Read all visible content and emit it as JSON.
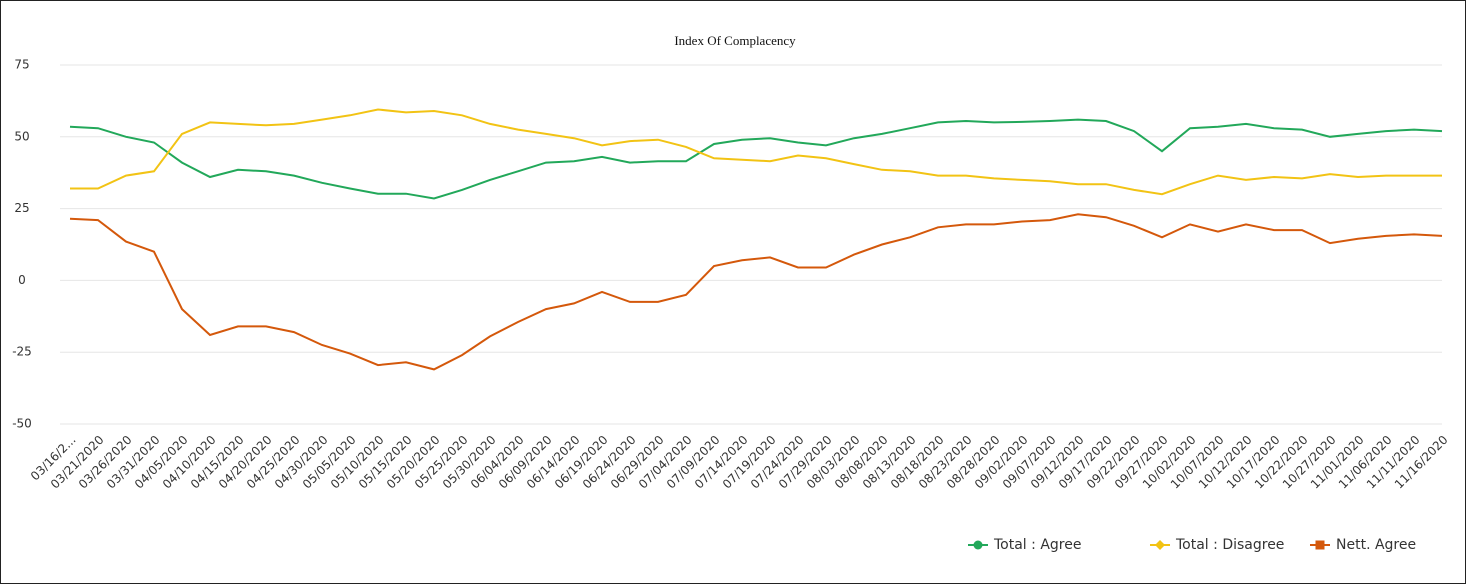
{
  "chart_data": {
    "type": "line",
    "title": "Index Of Complacency",
    "categories": [
      "03/16/2...",
      "03/21/2020",
      "03/26/2020",
      "03/31/2020",
      "04/05/2020",
      "04/10/2020",
      "04/15/2020",
      "04/20/2020",
      "04/25/2020",
      "04/30/2020",
      "05/05/2020",
      "05/10/2020",
      "05/15/2020",
      "05/20/2020",
      "05/25/2020",
      "05/30/2020",
      "06/04/2020",
      "06/09/2020",
      "06/14/2020",
      "06/19/2020",
      "06/24/2020",
      "06/29/2020",
      "07/04/2020",
      "07/09/2020",
      "07/14/2020",
      "07/19/2020",
      "07/24/2020",
      "07/29/2020",
      "08/03/2020",
      "08/08/2020",
      "08/13/2020",
      "08/18/2020",
      "08/23/2020",
      "08/28/2020",
      "09/02/2020",
      "09/07/2020",
      "09/12/2020",
      "09/17/2020",
      "09/22/2020",
      "09/27/2020",
      "10/02/2020",
      "10/07/2020",
      "10/12/2020",
      "10/17/2020",
      "10/22/2020",
      "10/27/2020",
      "11/01/2020",
      "11/06/2020",
      "11/11/2020",
      "11/16/2020"
    ],
    "series": [
      {
        "name": "Total : Agree",
        "color": "#22a85a",
        "values": [
          53.5,
          53,
          50,
          48,
          41,
          36,
          38.5,
          38,
          36.5,
          34,
          32,
          30.2,
          30.2,
          28.5,
          31.5,
          35,
          38,
          41,
          41.5,
          43,
          41,
          41.5,
          41.5,
          47.5,
          49,
          49.5,
          48,
          47,
          49.5,
          51,
          53,
          55,
          55.5,
          55,
          55.2,
          55.5,
          56,
          55.5,
          52,
          45,
          53,
          53.5,
          54.5,
          53,
          52.5,
          50,
          51,
          52,
          52.5,
          52
        ]
      },
      {
        "name": "Total : Disagree",
        "color": "#f2c314",
        "values": [
          32,
          32,
          36.5,
          38,
          51,
          55,
          54.5,
          54,
          54.5,
          56,
          57.5,
          59.5,
          58.5,
          59,
          57.5,
          54.5,
          52.5,
          51,
          49.5,
          47,
          48.5,
          49,
          46.5,
          42.5,
          42,
          41.5,
          43.5,
          42.5,
          40.5,
          38.5,
          38,
          36.5,
          36.5,
          35.5,
          35,
          34.5,
          33.5,
          33.5,
          31.5,
          30,
          33.5,
          36.5,
          35,
          36,
          35.5,
          37,
          36,
          36.5,
          36.5,
          36.5
        ]
      },
      {
        "name": "Nett. Agree",
        "color": "#d4580b",
        "values": [
          21.5,
          21,
          13.5,
          10,
          -10,
          -19,
          -16,
          -16,
          -18,
          -22.5,
          -25.5,
          -29.5,
          -28.5,
          -31,
          -26,
          -19.5,
          -14.5,
          -10,
          -8,
          -4,
          -7.5,
          -7.5,
          -5,
          5,
          7,
          8,
          4.5,
          4.5,
          9,
          12.5,
          15,
          18.5,
          19.5,
          19.5,
          20.5,
          21,
          23,
          22,
          19,
          15,
          19.5,
          17,
          19.5,
          17.5,
          17.5,
          13,
          14.5,
          15.5,
          16,
          15.5
        ]
      }
    ],
    "ylim": [
      -50,
      75
    ],
    "yticks": [
      -50,
      -25,
      0,
      25,
      50,
      75
    ],
    "grid": true,
    "legend": "bottom-right"
  }
}
